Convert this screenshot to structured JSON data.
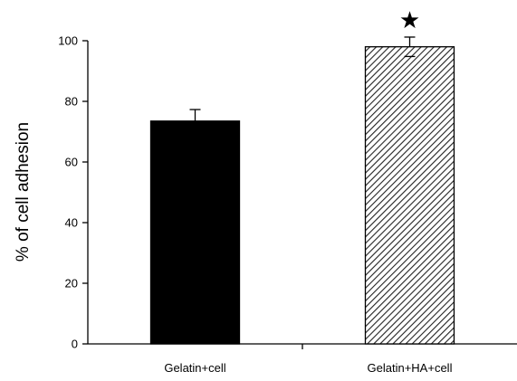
{
  "chart_data": {
    "type": "bar",
    "title": "",
    "xlabel": "",
    "ylabel": "% of cell adhesion",
    "categories": [
      "Gelatin+cell",
      "Gelatin+HA+cell"
    ],
    "values": [
      73.5,
      98
    ],
    "errors": [
      3.8,
      3.2
    ],
    "ylim": [
      0,
      100
    ],
    "yticks": [
      0,
      20,
      40,
      60,
      80,
      100
    ],
    "bar_styles": [
      {
        "fill": "#000000",
        "pattern": "solid"
      },
      {
        "fill": "#ffffff",
        "pattern": "diagonal-hatch",
        "hatch_color": "#222222"
      }
    ],
    "significance_marker": {
      "category_index": 1,
      "symbol": "★"
    },
    "grid": false,
    "legend": "none"
  }
}
